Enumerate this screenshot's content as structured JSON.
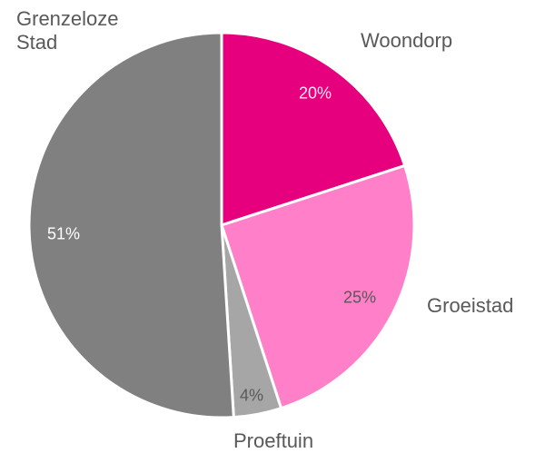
{
  "chart_data": {
    "type": "pie",
    "categories": [
      "Woondorp",
      "Groeistad",
      "Proeftuin",
      "Grenzeloze Stad"
    ],
    "values": [
      20,
      25,
      4,
      51
    ],
    "value_labels": [
      "20%",
      "25%",
      "4%",
      "51%"
    ],
    "colors": [
      "#e6007e",
      "#ff7fc8",
      "#a6a6a6",
      "#808080"
    ]
  }
}
